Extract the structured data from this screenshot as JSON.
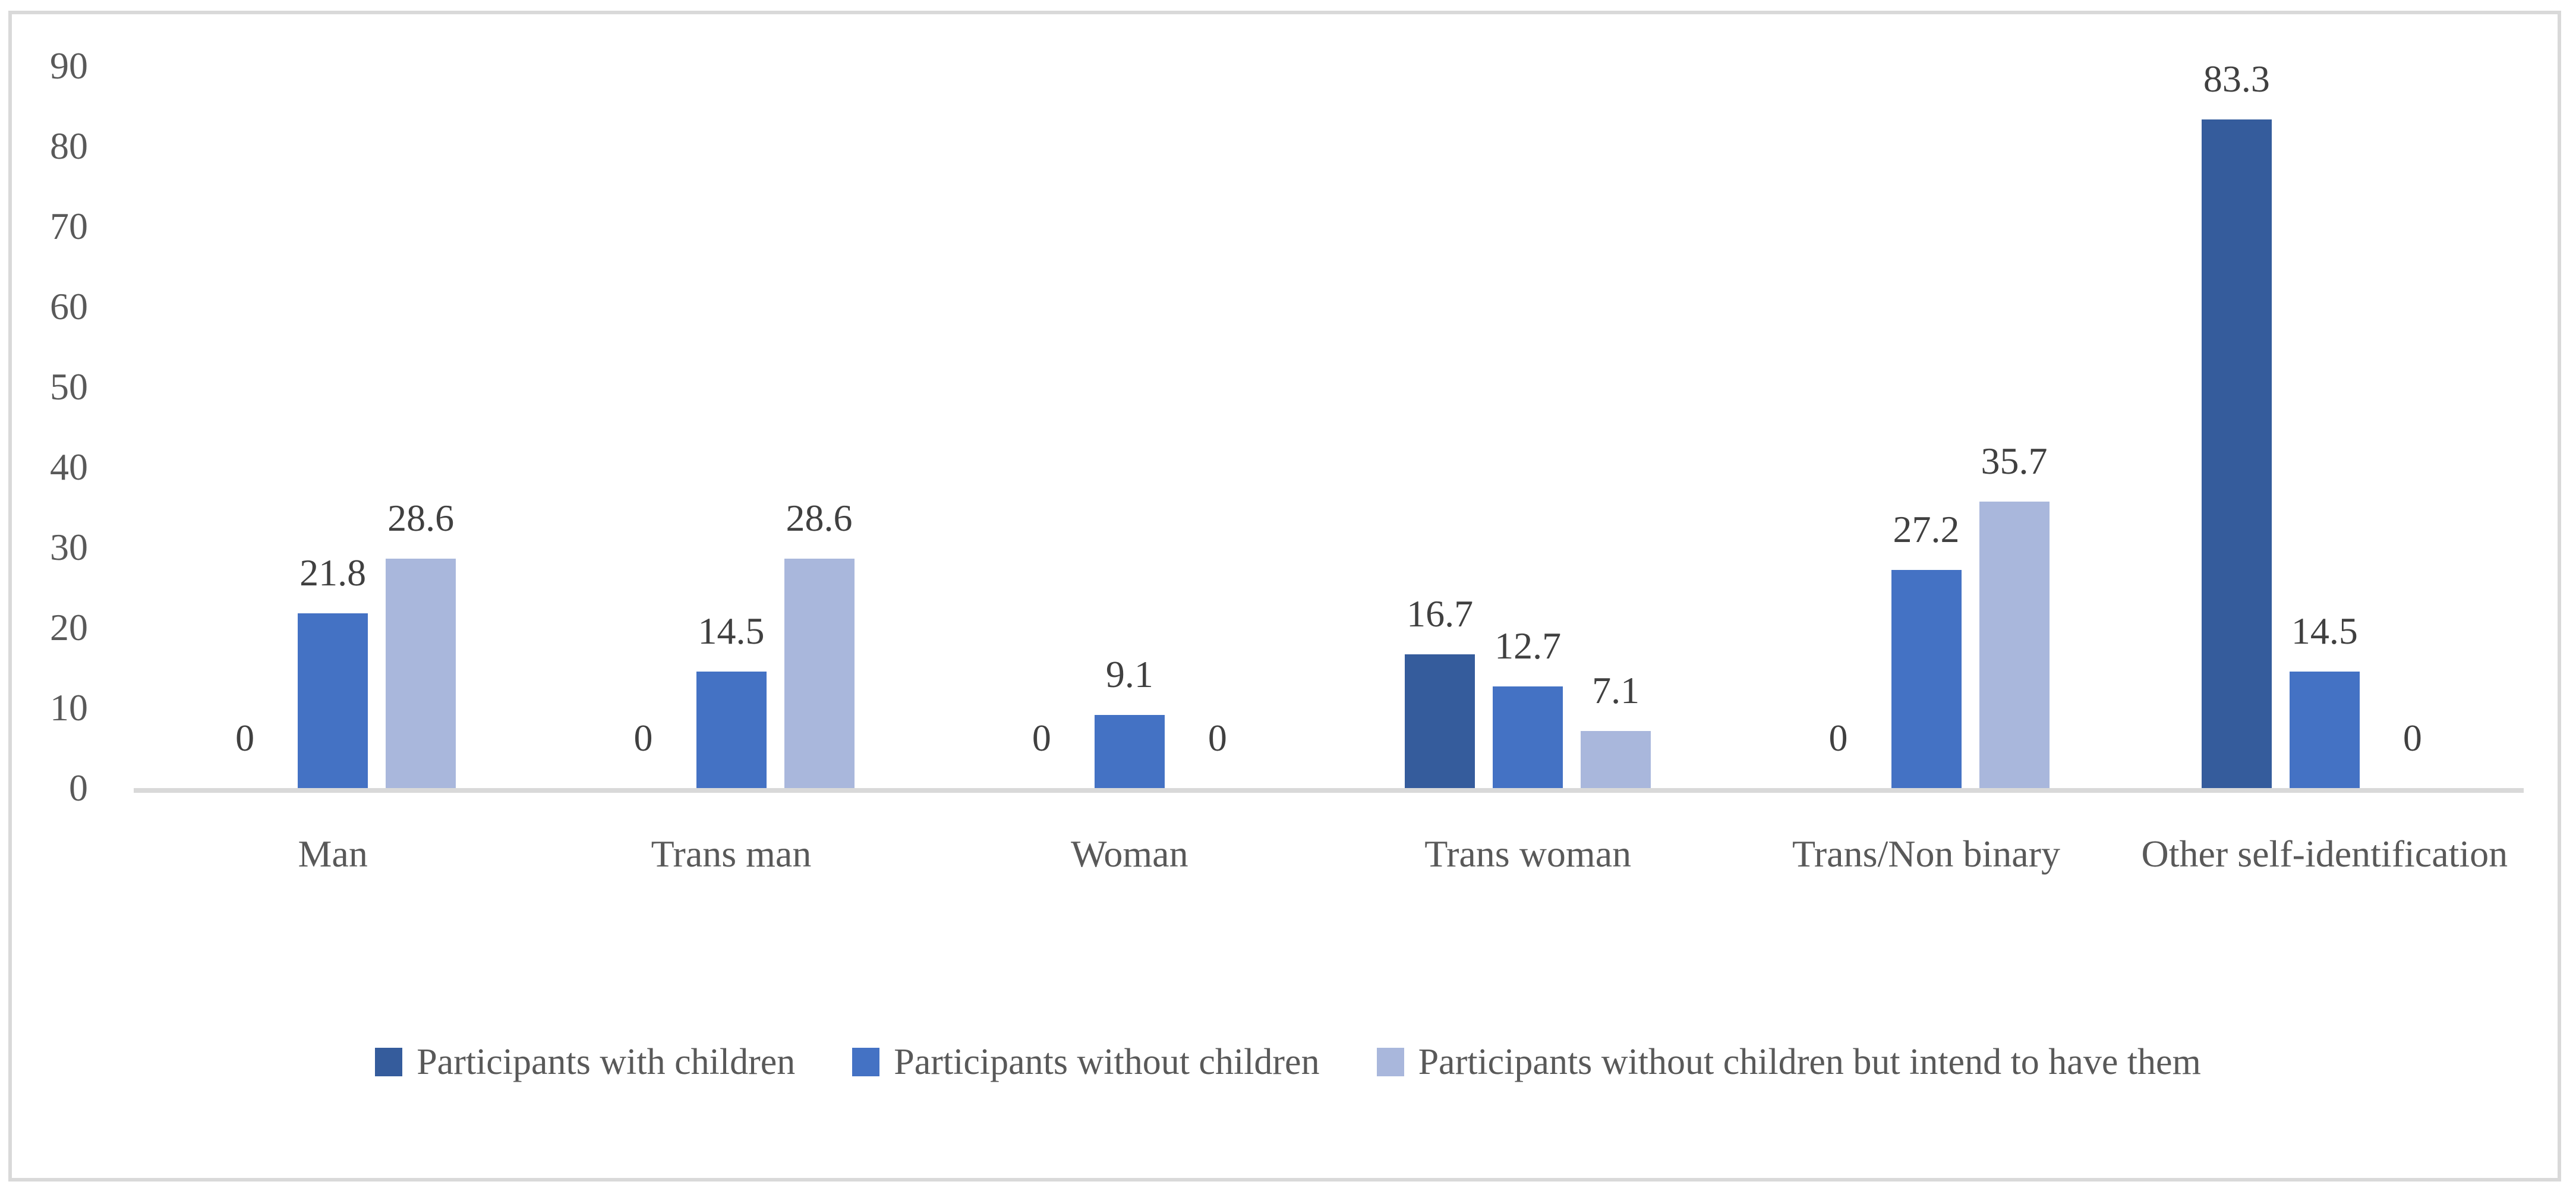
{
  "chart_data": {
    "type": "bar",
    "title": "",
    "xlabel": "",
    "ylabel": "",
    "categories": [
      "Man",
      "Trans man",
      "Woman",
      "Trans woman",
      "Trans/Non binary",
      "Other self-identification"
    ],
    "series": [
      {
        "name": "Participants with children",
        "color": "#355C9C",
        "values": [
          0,
          0,
          0,
          16.7,
          0,
          83.3
        ]
      },
      {
        "name": "Participants without children",
        "color": "#4472C4",
        "values": [
          21.8,
          14.5,
          9.1,
          12.7,
          27.2,
          14.5
        ]
      },
      {
        "name": "Participants without children but intend to have them",
        "color": "#A9B7DC",
        "values": [
          28.6,
          28.6,
          0,
          7.1,
          35.7,
          0
        ]
      }
    ],
    "data_labels": [
      [
        "0",
        "0",
        "0",
        "16.7",
        "0",
        "83.3"
      ],
      [
        "21.8",
        "14.5",
        "9.1",
        "12.7",
        "27.2",
        "14.5"
      ],
      [
        "28.6",
        "28.6",
        "0",
        "7.1",
        "35.7",
        "0"
      ]
    ],
    "yticks": [
      "0",
      "10",
      "20",
      "30",
      "40",
      "50",
      "60",
      "70",
      "80",
      "90"
    ],
    "ylim": [
      0,
      90
    ],
    "grid": false,
    "legend_position": "bottom",
    "axis_line_color": "#D9D9D9",
    "tick_text_color": "#595959",
    "label_text_color": "#404040",
    "frame_border_color": "#D9D9D9"
  }
}
